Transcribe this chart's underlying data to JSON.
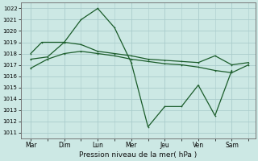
{
  "background_color": "#cce8e4",
  "grid_color": "#aacccc",
  "line_color": "#1a5c2a",
  "title": "Pression niveau de la mer( hPa )",
  "ylim": [
    1010.5,
    1022.5
  ],
  "yticks": [
    1011,
    1012,
    1013,
    1014,
    1015,
    1016,
    1017,
    1018,
    1019,
    1020,
    1021,
    1022
  ],
  "xlabels": [
    "Mar",
    "Dim",
    "Lun",
    "Mer",
    "Jeu",
    "Ven",
    "Sam"
  ],
  "x_positions": [
    0,
    1,
    2,
    3,
    4,
    5,
    6
  ],
  "line_dip": {
    "x": [
      0,
      0.5,
      1,
      1.5,
      2,
      2.5,
      3,
      3.5,
      4,
      4.5,
      5,
      5.5,
      6
    ],
    "y": [
      1017.5,
      1017.7,
      1019.0,
      1021.0,
      1022.0,
      1020.3,
      1017.2,
      1011.5,
      1013.3,
      1013.3,
      1015.2,
      1012.5,
      1016.5
    ]
  },
  "line_upper": {
    "x": [
      0,
      0.33,
      1,
      1.5,
      2,
      2.5,
      3,
      3.5,
      4,
      4.5,
      5,
      5.5,
      6,
      6.5
    ],
    "y": [
      1018.0,
      1019.0,
      1019.0,
      1018.8,
      1018.2,
      1018.0,
      1017.8,
      1017.5,
      1017.4,
      1017.3,
      1017.2,
      1017.8,
      1017.0,
      1017.2
    ]
  },
  "line_lower": {
    "x": [
      0,
      0.5,
      1,
      1.5,
      2,
      2.5,
      3,
      3.5,
      4,
      4.5,
      5,
      5.5,
      6,
      6.5
    ],
    "y": [
      1016.7,
      1017.5,
      1018.0,
      1018.2,
      1018.0,
      1017.8,
      1017.5,
      1017.3,
      1017.1,
      1017.0,
      1016.8,
      1016.5,
      1016.3,
      1017.0
    ]
  }
}
